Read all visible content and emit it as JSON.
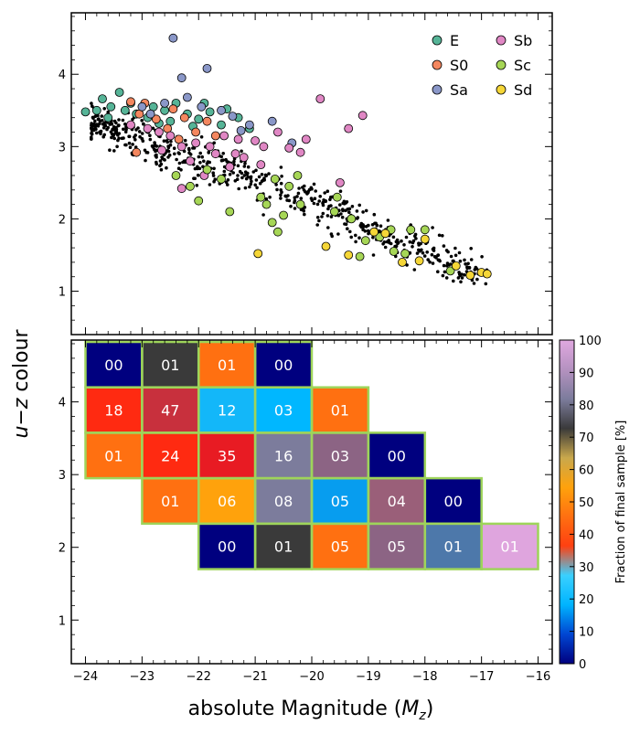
{
  "chart_data": [
    {
      "type": "scatter",
      "xlim": [
        -24.25,
        -15.75
      ],
      "ylim": [
        0.4,
        4.85
      ],
      "y_ticks": [
        "1",
        "2",
        "3",
        "4"
      ],
      "legend": {
        "placement": "top-right",
        "entries": [
          {
            "name": "E",
            "color": "#56b497"
          },
          {
            "name": "S0",
            "color": "#f4875f"
          },
          {
            "name": "Sa",
            "color": "#8a97c8"
          },
          {
            "name": "Sb",
            "color": "#e087c4"
          },
          {
            "name": "Sc",
            "color": "#a6d656"
          },
          {
            "name": "Sd",
            "color": "#f5d637"
          }
        ]
      },
      "series": [
        {
          "name": "E",
          "points": [
            [
              -24.0,
              3.48
            ],
            [
              -23.8,
              3.5
            ],
            [
              -23.7,
              3.66
            ],
            [
              -23.55,
              3.55
            ],
            [
              -23.4,
              3.75
            ],
            [
              -23.3,
              3.5
            ],
            [
              -23.1,
              3.45
            ],
            [
              -22.9,
              3.4
            ],
            [
              -22.8,
              3.55
            ],
            [
              -22.6,
              3.5
            ],
            [
              -22.5,
              3.35
            ],
            [
              -22.4,
              3.6
            ],
            [
              -22.2,
              3.45
            ],
            [
              -22.0,
              3.38
            ],
            [
              -21.8,
              3.48
            ],
            [
              -21.6,
              3.3
            ],
            [
              -21.5,
              3.52
            ],
            [
              -21.3,
              3.4
            ],
            [
              -21.1,
              3.25
            ],
            [
              -23.2,
              3.6
            ],
            [
              -22.7,
              3.32
            ],
            [
              -23.6,
              3.4
            ],
            [
              -22.1,
              3.28
            ],
            [
              -21.9,
              3.6
            ]
          ]
        },
        {
          "name": "S0",
          "points": [
            [
              -23.2,
              3.62
            ],
            [
              -23.05,
              3.45
            ],
            [
              -22.95,
              3.6
            ],
            [
              -22.75,
              3.38
            ],
            [
              -22.55,
              3.25
            ],
            [
              -22.45,
              3.52
            ],
            [
              -22.25,
              3.4
            ],
            [
              -22.05,
              3.2
            ],
            [
              -21.85,
              3.35
            ],
            [
              -21.7,
              3.15
            ],
            [
              -23.1,
              2.92
            ],
            [
              -22.35,
              3.1
            ]
          ]
        },
        {
          "name": "Sa",
          "points": [
            [
              -22.45,
              4.5
            ],
            [
              -21.85,
              4.08
            ],
            [
              -22.3,
              3.95
            ],
            [
              -23.0,
              3.55
            ],
            [
              -22.6,
              3.6
            ],
            [
              -21.95,
              3.55
            ],
            [
              -21.4,
              3.42
            ],
            [
              -21.25,
              3.22
            ],
            [
              -20.7,
              3.35
            ],
            [
              -20.35,
              3.05
            ],
            [
              -22.85,
              3.45
            ],
            [
              -21.6,
              3.5
            ],
            [
              -22.2,
              3.68
            ],
            [
              -21.1,
              3.3
            ]
          ]
        },
        {
          "name": "Sb",
          "points": [
            [
              -19.85,
              3.66
            ],
            [
              -19.1,
              3.43
            ],
            [
              -19.35,
              3.25
            ],
            [
              -20.1,
              3.1
            ],
            [
              -20.6,
              3.2
            ],
            [
              -20.85,
              3.0
            ],
            [
              -21.0,
              3.08
            ],
            [
              -21.3,
              3.1
            ],
            [
              -21.55,
              3.15
            ],
            [
              -21.8,
              3.0
            ],
            [
              -22.05,
              3.05
            ],
            [
              -22.3,
              3.0
            ],
            [
              -22.5,
              3.15
            ],
            [
              -22.7,
              3.2
            ],
            [
              -22.9,
              3.25
            ],
            [
              -23.2,
              3.3
            ],
            [
              -20.4,
              2.98
            ],
            [
              -21.2,
              2.85
            ],
            [
              -21.7,
              2.9
            ],
            [
              -22.15,
              2.8
            ],
            [
              -21.45,
              2.72
            ],
            [
              -22.65,
              2.95
            ],
            [
              -20.9,
              2.75
            ],
            [
              -19.5,
              2.5
            ],
            [
              -20.2,
              2.92
            ],
            [
              -22.3,
              2.42
            ],
            [
              -21.9,
              2.6
            ],
            [
              -21.35,
              2.9
            ]
          ]
        },
        {
          "name": "Sc",
          "points": [
            [
              -22.4,
              2.6
            ],
            [
              -21.85,
              2.68
            ],
            [
              -21.6,
              2.55
            ],
            [
              -22.15,
              2.45
            ],
            [
              -22.0,
              2.25
            ],
            [
              -21.45,
              2.1
            ],
            [
              -20.9,
              2.3
            ],
            [
              -20.65,
              2.55
            ],
            [
              -20.4,
              2.45
            ],
            [
              -20.25,
              2.6
            ],
            [
              -20.8,
              2.2
            ],
            [
              -20.5,
              2.05
            ],
            [
              -20.2,
              2.2
            ],
            [
              -20.7,
              1.95
            ],
            [
              -19.6,
              2.1
            ],
            [
              -19.3,
              2.0
            ],
            [
              -18.8,
              1.75
            ],
            [
              -19.05,
              1.7
            ],
            [
              -18.55,
              1.55
            ],
            [
              -18.35,
              1.52
            ],
            [
              -18.25,
              1.85
            ],
            [
              -18.0,
              1.85
            ],
            [
              -18.6,
              1.85
            ],
            [
              -19.15,
              1.48
            ],
            [
              -17.55,
              1.28
            ],
            [
              -19.55,
              2.3
            ],
            [
              -20.6,
              1.82
            ]
          ]
        },
        {
          "name": "Sd",
          "points": [
            [
              -20.95,
              1.52
            ],
            [
              -19.75,
              1.62
            ],
            [
              -19.35,
              1.5
            ],
            [
              -18.9,
              1.82
            ],
            [
              -18.7,
              1.8
            ],
            [
              -18.1,
              1.42
            ],
            [
              -18.4,
              1.4
            ],
            [
              -18.0,
              1.72
            ],
            [
              -17.45,
              1.35
            ],
            [
              -17.2,
              1.22
            ],
            [
              -17.0,
              1.26
            ],
            [
              -16.9,
              1.24
            ]
          ]
        }
      ]
    },
    {
      "type": "heatmap",
      "xlabel": "absolute Magnitude (M_z)",
      "ylabel": "u−z colour",
      "xlim": [
        -24.25,
        -15.75
      ],
      "ylim": [
        0.4,
        4.85
      ],
      "x_ticks": [
        "−24",
        "−23",
        "−22",
        "−21",
        "−20",
        "−19",
        "−18",
        "−17",
        "−16"
      ],
      "y_ticks": [
        "1",
        "2",
        "3",
        "4"
      ],
      "bin_width_mag": 1.0,
      "bin_height_colour": 0.625,
      "cells": [
        {
          "x0": -24,
          "y0": 4.2,
          "value": 0,
          "label": "00",
          "color": "#00007f"
        },
        {
          "x0": -23,
          "y0": 4.2,
          "value": 1,
          "label": "01",
          "color": "#3a3a3a"
        },
        {
          "x0": -22,
          "y0": 4.2,
          "value": 1,
          "label": "01",
          "color": "#ff7011"
        },
        {
          "x0": -21,
          "y0": 4.2,
          "value": 0,
          "label": "00",
          "color": "#00007f"
        },
        {
          "x0": -24,
          "y0": 3.575,
          "value": 18,
          "label": "18",
          "color": "#ff2a11"
        },
        {
          "x0": -23,
          "y0": 3.575,
          "value": 47,
          "label": "47",
          "color": "#c8303d"
        },
        {
          "x0": -22,
          "y0": 3.575,
          "value": 12,
          "label": "12",
          "color": "#13b7f9"
        },
        {
          "x0": -21,
          "y0": 3.575,
          "value": 3,
          "label": "03",
          "color": "#00b7ff"
        },
        {
          "x0": -20,
          "y0": 3.575,
          "value": 1,
          "label": "01",
          "color": "#ff7011"
        },
        {
          "x0": -24,
          "y0": 2.95,
          "value": 1,
          "label": "01",
          "color": "#ff7011"
        },
        {
          "x0": -23,
          "y0": 2.95,
          "value": 24,
          "label": "24",
          "color": "#ff2a11"
        },
        {
          "x0": -22,
          "y0": 2.95,
          "value": 35,
          "label": "35",
          "color": "#e81b23"
        },
        {
          "x0": -21,
          "y0": 2.95,
          "value": 16,
          "label": "16",
          "color": "#7c7c9c"
        },
        {
          "x0": -20,
          "y0": 2.95,
          "value": 3,
          "label": "03",
          "color": "#8c6484"
        },
        {
          "x0": -19,
          "y0": 2.95,
          "value": 0,
          "label": "00",
          "color": "#00007f"
        },
        {
          "x0": -23,
          "y0": 2.325,
          "value": 1,
          "label": "01",
          "color": "#ff7011"
        },
        {
          "x0": -22,
          "y0": 2.325,
          "value": 6,
          "label": "06",
          "color": "#ffa20c"
        },
        {
          "x0": -21,
          "y0": 2.325,
          "value": 8,
          "label": "08",
          "color": "#7c7c9c"
        },
        {
          "x0": -20,
          "y0": 2.325,
          "value": 5,
          "label": "05",
          "color": "#079def"
        },
        {
          "x0": -19,
          "y0": 2.325,
          "value": 4,
          "label": "04",
          "color": "#9a5f79"
        },
        {
          "x0": -18,
          "y0": 2.325,
          "value": 0,
          "label": "00",
          "color": "#00007f"
        },
        {
          "x0": -22,
          "y0": 1.7,
          "value": 0,
          "label": "00",
          "color": "#00007f"
        },
        {
          "x0": -21,
          "y0": 1.7,
          "value": 1,
          "label": "01",
          "color": "#3a3a3a"
        },
        {
          "x0": -20,
          "y0": 1.7,
          "value": 5,
          "label": "05",
          "color": "#ff7011"
        },
        {
          "x0": -19,
          "y0": 1.7,
          "value": 5,
          "label": "05",
          "color": "#8c6484"
        },
        {
          "x0": -18,
          "y0": 1.7,
          "value": 1,
          "label": "01",
          "color": "#4d78aa"
        },
        {
          "x0": -17,
          "y0": 1.7,
          "value": 1,
          "label": "01",
          "color": "#dfa5de"
        }
      ],
      "outline_color": "#9ed45a",
      "colorbar": {
        "label": "Fraction of final sample [%]",
        "range": [
          0,
          100
        ],
        "ticks": [
          "0",
          "10",
          "20",
          "30",
          "40",
          "50",
          "60",
          "70",
          "80",
          "90",
          "100"
        ],
        "stops": [
          "#00007f",
          "#0046d2",
          "#00b4ff",
          "#3ad0ff",
          "#ff4011",
          "#ff7011",
          "#ffa20c",
          "#c9a84c",
          "#3a3a3a",
          "#7c7c9c",
          "#b592c0",
          "#e0a8e0"
        ]
      }
    }
  ]
}
